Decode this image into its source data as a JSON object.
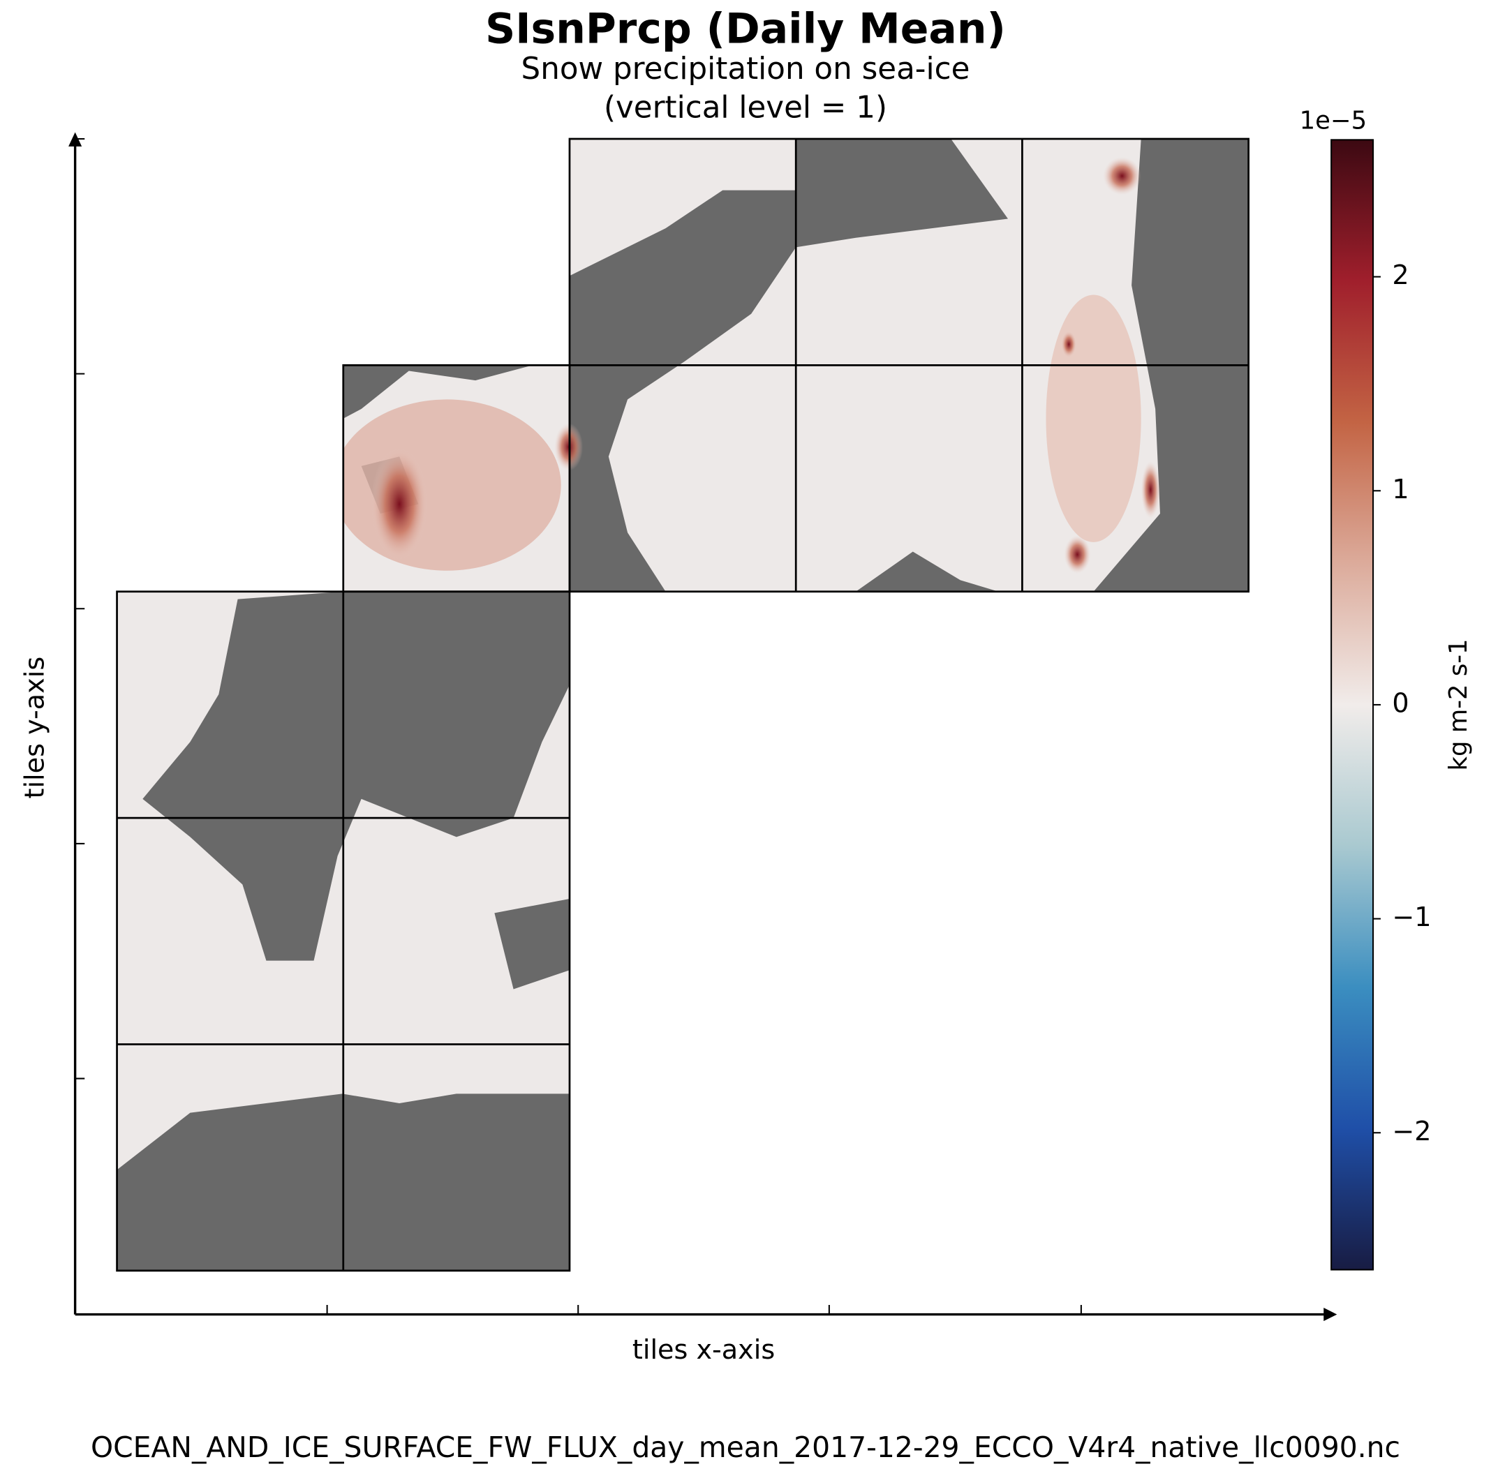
{
  "chart_data": {
    "type": "tile-map",
    "title": "SIsnPrcp (Daily Mean)",
    "subtitle": "Snow precipitation on sea-ice",
    "level_label": "(vertical level = 1)",
    "xlabel": "tiles x-axis",
    "ylabel": "tiles y-axis",
    "colorbar": {
      "label": "kg m-2 s-1",
      "scale_label": "1e−5",
      "lim": [
        -2.64,
        2.64
      ],
      "ticks": [
        {
          "value": -2,
          "label": "−2"
        },
        {
          "value": -1,
          "label": "−1"
        },
        0,
        1,
        2
      ],
      "colors": [
        "#181c43",
        "#1f4fa8",
        "#3b8ec0",
        "#a9c9d0",
        "#f1ecea",
        "#dcab9b",
        "#c36444",
        "#a01f2c",
        "#3c0912"
      ]
    },
    "footer": "OCEAN_AND_ICE_SURFACE_FW_FLUX_day_mean_2017-12-29_ECCO_V4r4_native_llc0090.nc"
  }
}
